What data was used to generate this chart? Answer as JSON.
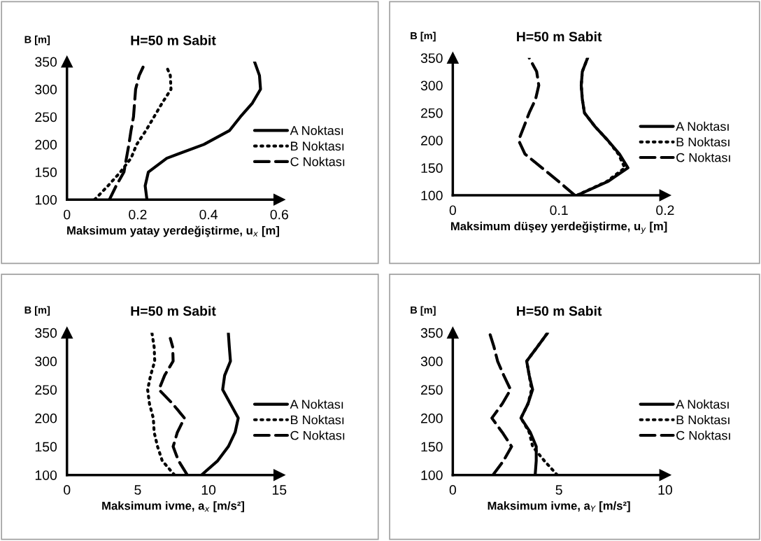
{
  "chart_data": [
    {
      "type": "line",
      "title": "H=50 m Sabit",
      "xlabel": "Maksimum yatay yerdeğiştirme, u$_{x}$ [m]",
      "ylabel": "B [m]",
      "xlim": [
        0,
        0.6
      ],
      "xticks": [
        0,
        0.2,
        0.4,
        0.6
      ],
      "ylim": [
        100,
        350
      ],
      "yticks": [
        100,
        150,
        200,
        250,
        300,
        350
      ],
      "legend": "right",
      "grid": false,
      "marker": "none",
      "series": [
        {
          "name": "A Noktası",
          "color": "#000000",
          "line_style": "solid",
          "x": [
            0.226,
            0.221,
            0.23,
            0.282,
            0.387,
            0.459,
            0.49,
            0.524,
            0.547,
            0.544,
            0.53
          ],
          "values": [
            100,
            125,
            150,
            175,
            200,
            225,
            250,
            275,
            300,
            325,
            350
          ]
        },
        {
          "name": "B Noktası",
          "color": "#000000",
          "line_style": "dotted",
          "x": [
            0.078,
            0.116,
            0.151,
            0.181,
            0.197,
            0.223,
            0.246,
            0.269,
            0.294,
            0.292,
            0.282
          ],
          "values": [
            100,
            125,
            150,
            175,
            200,
            225,
            250,
            275,
            300,
            325,
            340
          ]
        },
        {
          "name": "C Noktası",
          "color": "#000000",
          "line_style": "dashed",
          "x": [
            0.12,
            0.139,
            0.161,
            0.168,
            0.175,
            0.181,
            0.188,
            0.191,
            0.194,
            0.204,
            0.215
          ],
          "values": [
            100,
            125,
            150,
            175,
            200,
            225,
            250,
            275,
            300,
            325,
            340
          ]
        }
      ]
    },
    {
      "type": "line",
      "title": "H=50 m Sabit",
      "xlabel": "Maksimum düşey yerdeğiştirme, u$_{y}$ [m]",
      "ylabel": "B [m]",
      "xlim": [
        0,
        0.2
      ],
      "xticks": [
        0,
        0.1,
        0.2
      ],
      "ylim": [
        100,
        350
      ],
      "yticks": [
        100,
        150,
        200,
        250,
        300,
        350
      ],
      "legend": "right",
      "grid": false,
      "marker": "none",
      "series": [
        {
          "name": "A Noktası",
          "color": "#000000",
          "line_style": "solid",
          "x": [
            0.117,
            0.146,
            0.165,
            0.157,
            0.146,
            0.134,
            0.124,
            0.122,
            0.121,
            0.122,
            0.127
          ],
          "values": [
            100,
            125,
            150,
            175,
            200,
            225,
            250,
            275,
            300,
            325,
            350
          ]
        },
        {
          "name": "B Noktası",
          "color": "#000000",
          "line_style": "dotted",
          "x": [
            0.117,
            0.145,
            0.162,
            0.156,
            0.146,
            0.134,
            0.124,
            0.122,
            0.121,
            0.122,
            0.127
          ],
          "values": [
            100,
            125,
            150,
            175,
            200,
            225,
            250,
            275,
            300,
            325,
            350
          ]
        },
        {
          "name": "C Noktası",
          "color": "#000000",
          "line_style": "dashed",
          "x": [
            0.115,
            0.0998,
            0.084,
            0.068,
            0.062,
            0.067,
            0.072,
            0.078,
            0.081,
            0.079,
            0.072
          ],
          "values": [
            100,
            125,
            150,
            175,
            200,
            225,
            250,
            275,
            300,
            325,
            350
          ]
        }
      ]
    },
    {
      "type": "line",
      "title": "H=50 m Sabit",
      "xlabel": "Maksimum ivme, a$_{x}$ [m/s²]",
      "ylabel": "B [m]",
      "xlim": [
        0,
        15
      ],
      "xticks": [
        0,
        5,
        10,
        15
      ],
      "ylim": [
        100,
        350
      ],
      "yticks": [
        100,
        150,
        200,
        250,
        300,
        350
      ],
      "legend": "right",
      "grid": false,
      "marker": "none",
      "series": [
        {
          "name": "A Noktası",
          "color": "#000000",
          "line_style": "solid",
          "x": [
            9.5,
            10.65,
            11.4,
            11.88,
            12.1,
            11.55,
            11.0,
            11.14,
            11.55,
            11.47,
            11.4
          ],
          "values": [
            100,
            125,
            150,
            175,
            200,
            225,
            250,
            275,
            300,
            325,
            350
          ]
        },
        {
          "name": "B Noktası",
          "color": "#000000",
          "line_style": "dotted",
          "x": [
            7.6,
            6.73,
            6.4,
            6.16,
            6.1,
            5.83,
            5.7,
            5.91,
            6.2,
            6.16,
            6.0
          ],
          "values": [
            100,
            125,
            150,
            175,
            200,
            225,
            250,
            275,
            300,
            325,
            350
          ]
        },
        {
          "name": "C Noktası",
          "color": "#000000",
          "line_style": "dashed",
          "x": [
            8.5,
            7.88,
            7.5,
            7.8,
            8.3,
            7.47,
            6.5,
            6.9,
            7.5,
            7.47,
            7.3
          ],
          "values": [
            100,
            125,
            150,
            175,
            200,
            225,
            250,
            275,
            300,
            325,
            340
          ]
        }
      ]
    },
    {
      "type": "line",
      "title": "H=50 m Sabit",
      "xlabel": "Maksimum ivme, a$_{Y}$ [m/s²]",
      "ylabel": "B [m]",
      "xlim": [
        0,
        10
      ],
      "xticks": [
        0,
        5,
        10
      ],
      "ylim": [
        100,
        350
      ],
      "yticks": [
        100,
        150,
        200,
        250,
        300,
        350
      ],
      "legend": "right",
      "grid": false,
      "marker": "none",
      "series": [
        {
          "name": "A Noktası",
          "color": "#000000",
          "line_style": "solid",
          "x": [
            3.88,
            3.93,
            3.93,
            3.65,
            3.21,
            3.54,
            3.76,
            3.6,
            3.48,
            3.98,
            4.47
          ],
          "values": [
            100,
            125,
            150,
            175,
            200,
            225,
            250,
            275,
            300,
            325,
            350
          ]
        },
        {
          "name": "B Noktası",
          "color": "#000000",
          "line_style": "dotted",
          "x": [
            4.92,
            4.31,
            3.76,
            3.6,
            3.21,
            3.54,
            3.71,
            3.6,
            3.48,
            3.98,
            4.47
          ],
          "values": [
            100,
            125,
            150,
            175,
            200,
            225,
            250,
            275,
            300,
            325,
            350
          ]
        },
        {
          "name": "C Noktası",
          "color": "#000000",
          "line_style": "dashed",
          "x": [
            1.89,
            2.39,
            2.77,
            2.33,
            1.84,
            2.33,
            2.72,
            2.4,
            2.11,
            1.94,
            1.73
          ],
          "values": [
            100,
            125,
            150,
            175,
            200,
            225,
            250,
            275,
            300,
            325,
            350
          ]
        }
      ]
    }
  ]
}
